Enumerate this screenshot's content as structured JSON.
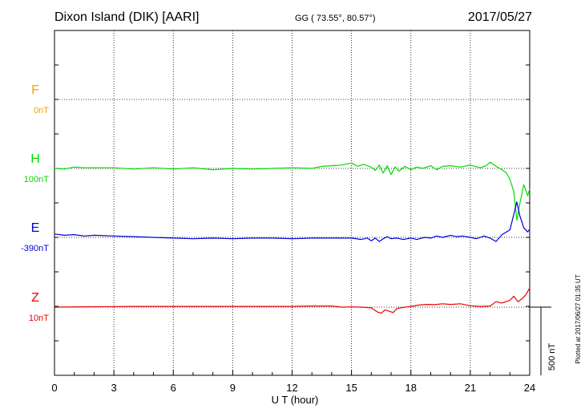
{
  "header": {
    "station": "Dixon Island (DIK)  [AARI]",
    "coords": "GG ( 73.55°,  80.57°)",
    "date": "2017/05/27"
  },
  "plotted_note": "Plotted at 2017/06/27 01:35 UT",
  "scale_label": "500 nT",
  "chart_data": {
    "type": "line",
    "xlabel": "U T (hour)",
    "xlim": [
      0,
      24
    ],
    "xticks": [
      0,
      3,
      6,
      9,
      12,
      15,
      18,
      21,
      24
    ],
    "xtick_labels": [
      "0",
      "3",
      "6",
      "9",
      "12",
      "15",
      "18",
      "21",
      "24"
    ],
    "grid": true,
    "scale_bar_nT": 500,
    "series": [
      {
        "name": "F",
        "baseline_label": "0nT",
        "color": "#f5a000",
        "points": []
      },
      {
        "name": "H",
        "baseline_label": "100nT",
        "color": "#00dd00",
        "points": [
          [
            0,
            0
          ],
          [
            0.5,
            -5
          ],
          [
            1,
            10
          ],
          [
            1.5,
            5
          ],
          [
            2,
            5
          ],
          [
            3,
            5
          ],
          [
            4,
            -5
          ],
          [
            5,
            5
          ],
          [
            6,
            -5
          ],
          [
            7,
            5
          ],
          [
            8,
            -10
          ],
          [
            9,
            0
          ],
          [
            10,
            -5
          ],
          [
            11,
            0
          ],
          [
            12,
            5
          ],
          [
            13,
            0
          ],
          [
            13.5,
            15
          ],
          [
            14,
            20
          ],
          [
            14.5,
            25
          ],
          [
            15,
            40
          ],
          [
            15.3,
            15
          ],
          [
            15.6,
            30
          ],
          [
            16,
            10
          ],
          [
            16.2,
            -15
          ],
          [
            16.4,
            25
          ],
          [
            16.6,
            -35
          ],
          [
            16.8,
            20
          ],
          [
            17,
            -45
          ],
          [
            17.2,
            10
          ],
          [
            17.4,
            -20
          ],
          [
            17.7,
            15
          ],
          [
            18,
            -10
          ],
          [
            18.3,
            10
          ],
          [
            18.6,
            0
          ],
          [
            19,
            20
          ],
          [
            19.3,
            -10
          ],
          [
            19.6,
            15
          ],
          [
            20,
            20
          ],
          [
            20.5,
            10
          ],
          [
            21,
            25
          ],
          [
            21.5,
            5
          ],
          [
            21.8,
            20
          ],
          [
            22,
            45
          ],
          [
            22.3,
            15
          ],
          [
            22.6,
            -10
          ],
          [
            22.8,
            -30
          ],
          [
            23,
            -80
          ],
          [
            23.2,
            -170
          ],
          [
            23.35,
            -380
          ],
          [
            23.5,
            -260
          ],
          [
            23.7,
            -120
          ],
          [
            23.9,
            -200
          ],
          [
            24,
            -150
          ]
        ]
      },
      {
        "name": "E",
        "baseline_label": "-390nT",
        "color": "#0000dd",
        "points": [
          [
            0,
            25
          ],
          [
            0.5,
            15
          ],
          [
            1,
            20
          ],
          [
            1.5,
            10
          ],
          [
            2,
            15
          ],
          [
            3,
            10
          ],
          [
            4,
            5
          ],
          [
            5,
            0
          ],
          [
            6,
            -5
          ],
          [
            7,
            -10
          ],
          [
            8,
            -5
          ],
          [
            9,
            -10
          ],
          [
            10,
            -5
          ],
          [
            11,
            -5
          ],
          [
            12,
            -10
          ],
          [
            13,
            -5
          ],
          [
            14,
            -5
          ],
          [
            15,
            -5
          ],
          [
            15.5,
            -15
          ],
          [
            15.8,
            -5
          ],
          [
            16,
            -25
          ],
          [
            16.2,
            -5
          ],
          [
            16.4,
            -30
          ],
          [
            16.6,
            -10
          ],
          [
            16.8,
            5
          ],
          [
            17,
            -10
          ],
          [
            17.3,
            -5
          ],
          [
            17.6,
            -15
          ],
          [
            18,
            -5
          ],
          [
            18.3,
            -15
          ],
          [
            18.7,
            0
          ],
          [
            19,
            -5
          ],
          [
            19.3,
            10
          ],
          [
            19.6,
            0
          ],
          [
            20,
            15
          ],
          [
            20.3,
            5
          ],
          [
            20.6,
            10
          ],
          [
            21,
            0
          ],
          [
            21.3,
            -10
          ],
          [
            21.7,
            10
          ],
          [
            22,
            -5
          ],
          [
            22.3,
            -30
          ],
          [
            22.6,
            20
          ],
          [
            23,
            55
          ],
          [
            23.2,
            170
          ],
          [
            23.35,
            260
          ],
          [
            23.5,
            160
          ],
          [
            23.7,
            70
          ],
          [
            23.9,
            40
          ],
          [
            24,
            60
          ]
        ]
      },
      {
        "name": "Z",
        "baseline_label": "10nT",
        "color": "#ee0000",
        "points": [
          [
            0,
            0
          ],
          [
            2,
            3
          ],
          [
            4,
            5
          ],
          [
            6,
            5
          ],
          [
            8,
            5
          ],
          [
            10,
            5
          ],
          [
            11,
            5
          ],
          [
            12,
            5
          ],
          [
            13,
            8
          ],
          [
            14,
            8
          ],
          [
            14.5,
            0
          ],
          [
            15,
            2
          ],
          [
            15.5,
            0
          ],
          [
            16,
            -5
          ],
          [
            16.3,
            -35
          ],
          [
            16.5,
            -45
          ],
          [
            16.7,
            -20
          ],
          [
            16.9,
            -30
          ],
          [
            17.1,
            -40
          ],
          [
            17.3,
            -10
          ],
          [
            17.7,
            0
          ],
          [
            18,
            5
          ],
          [
            18.4,
            15
          ],
          [
            18.8,
            20
          ],
          [
            19.2,
            18
          ],
          [
            19.6,
            25
          ],
          [
            20,
            20
          ],
          [
            20.5,
            25
          ],
          [
            21,
            10
          ],
          [
            21.5,
            5
          ],
          [
            22,
            8
          ],
          [
            22.3,
            40
          ],
          [
            22.6,
            30
          ],
          [
            23,
            50
          ],
          [
            23.2,
            80
          ],
          [
            23.4,
            40
          ],
          [
            23.6,
            60
          ],
          [
            23.8,
            90
          ],
          [
            24,
            140
          ]
        ]
      }
    ]
  }
}
